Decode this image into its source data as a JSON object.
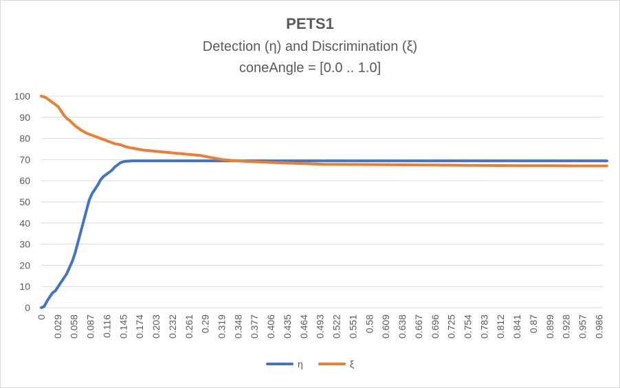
{
  "chart_data": {
    "type": "line",
    "title": "PETS1",
    "subtitle": "Detection (η) and Discrimination (ξ)",
    "subtitle2": "coneAngle = [0.0 .. 1.0]",
    "ylim": [
      0,
      100
    ],
    "yticks": [
      0,
      10,
      20,
      30,
      40,
      50,
      60,
      70,
      80,
      90,
      100
    ],
    "xticks": [
      "0",
      "0.029",
      "0.058",
      "0.087",
      "0.116",
      "0.145",
      "0.174",
      "0.203",
      "0.232",
      "0.261",
      "0.29",
      "0.319",
      "0.348",
      "0.377",
      "0.406",
      "0.435",
      "0.464",
      "0.493",
      "0.522",
      "0.551",
      "0.58",
      "0.609",
      "0.638",
      "0.667",
      "0.696",
      "0.725",
      "0.754",
      "0.783",
      "0.812",
      "0.841",
      "0.87",
      "0.899",
      "0.928",
      "0.957",
      "0.986"
    ],
    "grid": true,
    "legend": "bottom",
    "series": [
      {
        "name": "η",
        "color": "#4472c4",
        "x": [
          0,
          0.005,
          0.01,
          0.015,
          0.02,
          0.025,
          0.03,
          0.035,
          0.04,
          0.045,
          0.05,
          0.055,
          0.06,
          0.065,
          0.07,
          0.075,
          0.08,
          0.085,
          0.09,
          0.095,
          0.1,
          0.105,
          0.11,
          0.115,
          0.12,
          0.125,
          0.13,
          0.135,
          0.14,
          0.145,
          0.15,
          0.155,
          0.16,
          0.2,
          0.3,
          0.4,
          0.5,
          0.6,
          0.7,
          0.8,
          0.9,
          1.0
        ],
        "values": [
          0,
          0.5,
          3,
          5,
          7,
          8,
          10,
          12,
          14,
          16,
          19,
          22,
          26,
          31,
          36,
          41,
          46,
          51,
          54,
          56,
          58,
          60.5,
          62,
          63,
          64,
          65,
          66.5,
          67.5,
          68.5,
          69,
          69.2,
          69.3,
          69.4,
          69.4,
          69.4,
          69.4,
          69.4,
          69.4,
          69.4,
          69.4,
          69.4,
          69.4
        ]
      },
      {
        "name": "ξ",
        "color": "#ed7d31",
        "x": [
          0,
          0.005,
          0.01,
          0.015,
          0.02,
          0.025,
          0.03,
          0.035,
          0.04,
          0.045,
          0.05,
          0.06,
          0.07,
          0.08,
          0.09,
          0.1,
          0.11,
          0.12,
          0.13,
          0.14,
          0.15,
          0.16,
          0.17,
          0.18,
          0.2,
          0.22,
          0.24,
          0.26,
          0.28,
          0.3,
          0.32,
          0.34,
          0.36,
          0.4,
          0.45,
          0.5,
          0.55,
          0.6,
          0.65,
          0.7,
          0.75,
          0.8,
          0.85,
          0.9,
          0.95,
          1.0
        ],
        "values": [
          100,
          99.7,
          99,
          98,
          97,
          96,
          95,
          93,
          91,
          89.5,
          88.5,
          86,
          84,
          82.5,
          81.5,
          80.5,
          79.5,
          78.5,
          77.5,
          77,
          76,
          75.5,
          75,
          74.5,
          74,
          73.5,
          73,
          72.5,
          72,
          71,
          70,
          69.5,
          69.2,
          68.7,
          68.2,
          67.8,
          67.7,
          67.6,
          67.5,
          67.4,
          67.3,
          67.2,
          67.1,
          67.1,
          67,
          67
        ]
      }
    ]
  }
}
